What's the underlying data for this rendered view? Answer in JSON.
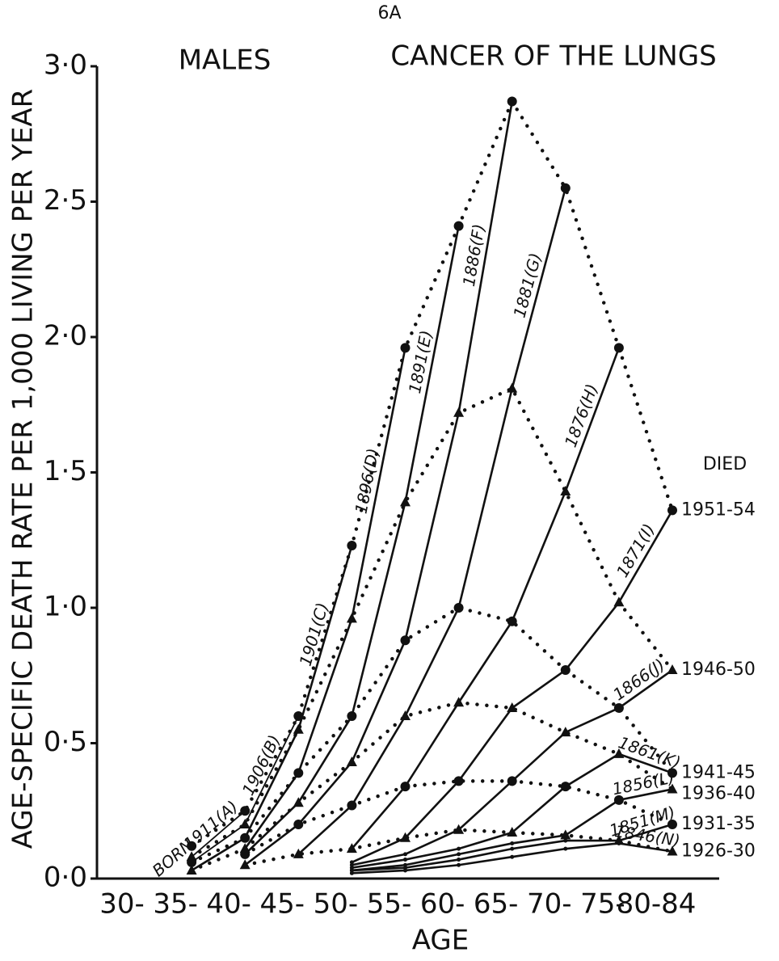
{
  "chart_data": {
    "type": "line",
    "page_label": "6A",
    "title": "CANCER OF THE LUNGS",
    "subtitle": "MALES",
    "y_label": "AGE-SPECIFIC DEATH RATE PER 1,000 LIVING PER YEAR",
    "x_label": "AGE",
    "legend_title": "DIED",
    "born_label": "BORN",
    "color": "#111111",
    "categories": [
      "30-",
      "35-",
      "40-",
      "45-",
      "50-",
      "55-",
      "60-",
      "65-",
      "70-",
      "75-",
      "80-84"
    ],
    "ylim": [
      0,
      3
    ],
    "yticks": [
      {
        "value": 0,
        "label": "0·0"
      },
      {
        "value": 0.5,
        "label": "0·5"
      },
      {
        "value": 1,
        "label": "1·0"
      },
      {
        "value": 1.5,
        "label": "1·5"
      },
      {
        "value": 2,
        "label": "2·0"
      },
      {
        "value": 2.5,
        "label": "2·5"
      },
      {
        "value": 3,
        "label": "3·0"
      }
    ],
    "series": [
      {
        "name": "1951-54",
        "values": [
          null,
          0.12,
          0.25,
          0.6,
          1.23,
          1.96,
          2.41,
          2.87,
          2.55,
          1.96,
          1.36
        ]
      },
      {
        "name": "1946-50",
        "values": [
          null,
          0.08,
          0.2,
          0.55,
          0.96,
          1.39,
          1.72,
          1.81,
          1.43,
          1.02,
          0.77
        ]
      },
      {
        "name": "1941-45",
        "values": [
          null,
          0.06,
          0.15,
          0.39,
          0.6,
          0.88,
          1.0,
          0.95,
          0.77,
          0.63,
          0.39
        ]
      },
      {
        "name": "1936-40",
        "values": [
          null,
          0.03,
          0.11,
          0.28,
          0.43,
          0.6,
          0.65,
          0.63,
          0.54,
          0.46,
          0.33
        ]
      },
      {
        "name": "1931-35",
        "values": [
          null,
          null,
          0.09,
          0.2,
          0.27,
          0.34,
          0.36,
          0.36,
          0.34,
          0.29,
          0.2
        ]
      },
      {
        "name": "1926-30",
        "values": [
          null,
          null,
          0.05,
          0.09,
          0.11,
          0.15,
          0.18,
          0.17,
          0.16,
          0.14,
          0.1
        ]
      },
      {
        "values": [
          null,
          null,
          null,
          null,
          0.06,
          0.09,
          0.11,
          0.13,
          0.14,
          0.13,
          null
        ]
      },
      {
        "values": [
          null,
          null,
          null,
          null,
          0.05,
          0.07,
          0.09,
          0.11,
          0.11,
          null,
          null
        ]
      },
      {
        "values": [
          null,
          null,
          null,
          null,
          0.04,
          0.05,
          0.07,
          0.08,
          null,
          null,
          null
        ]
      },
      {
        "values": [
          null,
          null,
          null,
          null,
          0.03,
          0.04,
          0.05,
          null,
          null,
          null,
          null
        ]
      },
      {
        "values": [
          null,
          null,
          null,
          null,
          0.03,
          0.03,
          null,
          null,
          null,
          null,
          null
        ]
      },
      {
        "values": [
          null,
          null,
          null,
          null,
          0.02,
          null,
          null,
          null,
          null,
          null,
          null
        ]
      }
    ],
    "cohorts": [
      "1911(A)",
      "1906(B)",
      "1901(C)",
      "1896(D)",
      "1891(E)",
      "1886(F)",
      "1881(G)",
      "1876(H)",
      "1871(I)",
      "1866(J)",
      "1861(K)",
      "1856(L)",
      "1851(M)",
      "1846(N)"
    ]
  }
}
